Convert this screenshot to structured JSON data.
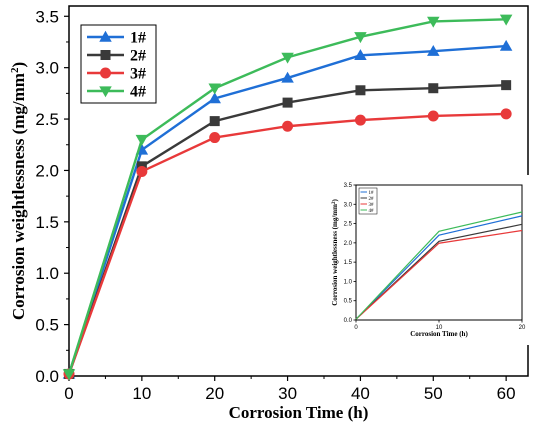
{
  "chart_data": [
    {
      "type": "line",
      "xlabel": "Corrosion Time (h)",
      "ylabel": "Corrosion weightlessness (mg/mm",
      "ylabel_sup": "2",
      "ylabel_close": ")",
      "xlim": [
        0,
        63
      ],
      "ylim": [
        0,
        3.6
      ],
      "x_ticks": [
        "0",
        "10",
        "20",
        "30",
        "40",
        "50",
        "60"
      ],
      "y_ticks": [
        "0.0",
        "0.5",
        "1.0",
        "1.5",
        "2.0",
        "2.5",
        "3.0",
        "3.5"
      ],
      "x": [
        0,
        10,
        20,
        30,
        40,
        50,
        60
      ],
      "legend_position": "top-left",
      "series": [
        {
          "name": "1#",
          "color": "#1f6fd6",
          "marker": "triangle-up",
          "values": [
            0.02,
            2.2,
            2.7,
            2.9,
            3.12,
            3.16,
            3.21
          ]
        },
        {
          "name": "2#",
          "color": "#3a3a3a",
          "marker": "square",
          "values": [
            0.02,
            2.04,
            2.48,
            2.66,
            2.78,
            2.8,
            2.83
          ]
        },
        {
          "name": "3#",
          "color": "#e8393a",
          "marker": "circle",
          "values": [
            0.02,
            1.99,
            2.32,
            2.43,
            2.49,
            2.53,
            2.55
          ]
        },
        {
          "name": "4#",
          "color": "#3dbb5a",
          "marker": "triangle-down",
          "values": [
            0.02,
            2.3,
            2.8,
            3.1,
            3.3,
            3.45,
            3.47
          ]
        }
      ]
    },
    {
      "type": "line",
      "xlabel": "Corrosion Time (h)",
      "ylabel": "Corrosion weightlessness (mg/mm",
      "ylabel_sup": "2",
      "ylabel_close": ")",
      "xlim": [
        0,
        20
      ],
      "ylim": [
        0,
        3.5
      ],
      "x_ticks": [
        "0",
        "10",
        "20"
      ],
      "y_ticks": [
        "0.0",
        "0.5",
        "1.0",
        "1.5",
        "2.0",
        "2.5",
        "3.0",
        "3.5"
      ],
      "x": [
        0,
        10,
        20
      ],
      "legend_position": "top-left",
      "series": [
        {
          "name": "1#",
          "color": "#1f6fd6",
          "values": [
            0.02,
            2.2,
            2.7
          ]
        },
        {
          "name": "2#",
          "color": "#3a3a3a",
          "values": [
            0.02,
            2.04,
            2.48
          ]
        },
        {
          "name": "3#",
          "color": "#e8393a",
          "values": [
            0.02,
            1.99,
            2.32
          ]
        },
        {
          "name": "4#",
          "color": "#3dbb5a",
          "values": [
            0.02,
            2.3,
            2.8
          ]
        }
      ]
    }
  ]
}
